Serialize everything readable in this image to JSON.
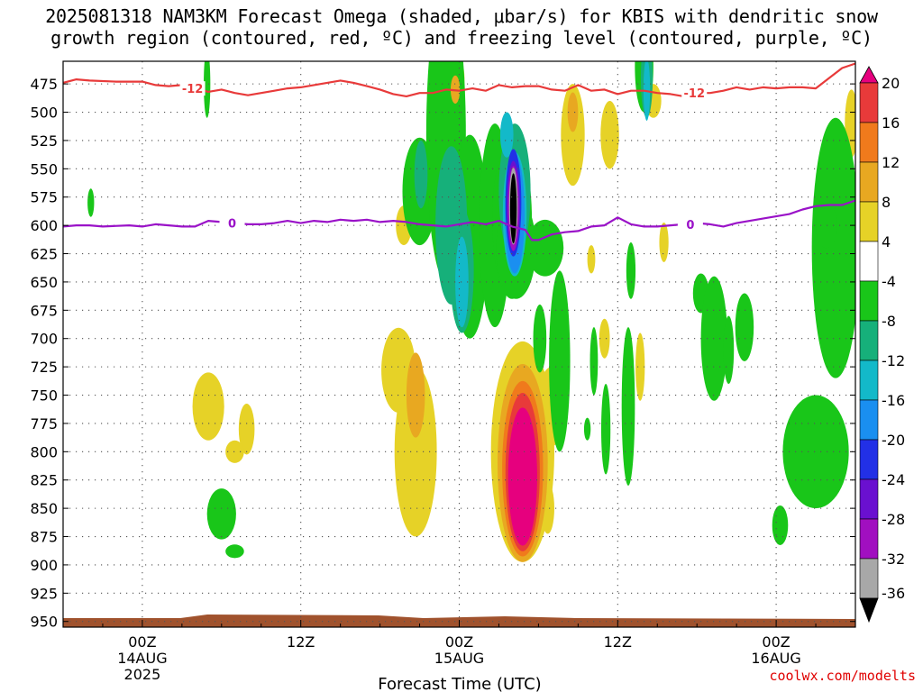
{
  "title": {
    "line1": "2025081318 NAM3KM Forecast Omega (shaded, μbar/s) for KBIS with dendritic snow",
    "line2": "growth region (contoured, red, ºC) and freezing level (contoured, purple, ºC)"
  },
  "footer": {
    "credit": "coolwx.com/modelts"
  },
  "colors": {
    "dgz_line": "#e83a3a",
    "freezing_line": "#9a12c8",
    "ground": "#a0522d",
    "grid": "#888888"
  },
  "chart_data": {
    "type": "heatmap",
    "xlabel": "Forecast Time (UTC)",
    "ylabel": "",
    "x_ticks": [
      {
        "label": "00Z",
        "sub": [
          "14AUG",
          "2025"
        ],
        "hour": 6
      },
      {
        "label": "12Z",
        "sub": [],
        "hour": 18
      },
      {
        "label": "00Z",
        "sub": [
          "15AUG"
        ],
        "hour": 30
      },
      {
        "label": "12Z",
        "sub": [],
        "hour": 42
      },
      {
        "label": "00Z",
        "sub": [
          "16AUG"
        ],
        "hour": 54
      }
    ],
    "xlim_hours": [
      0,
      60
    ],
    "y_ticks_mb": [
      475,
      500,
      525,
      550,
      575,
      600,
      625,
      650,
      675,
      700,
      725,
      750,
      775,
      800,
      825,
      850,
      875,
      900,
      925,
      950
    ],
    "ylim_mb": [
      455,
      955
    ],
    "colorbar": {
      "labels": [
        "20",
        "16",
        "12",
        "8",
        "4",
        "-4",
        "-8",
        "-12",
        "-16",
        "-20",
        "-24",
        "-28",
        "-32",
        "-36"
      ],
      "bins": [
        {
          "lo": 20,
          "color": "#e6007e"
        },
        {
          "lo": 16,
          "color": "#e83a3a"
        },
        {
          "lo": 12,
          "color": "#f07a1c"
        },
        {
          "lo": 8,
          "color": "#e8a821"
        },
        {
          "lo": 4,
          "color": "#e6d227"
        },
        {
          "lo": -4,
          "color": "#ffffff"
        },
        {
          "lo": -8,
          "color": "#19c619"
        },
        {
          "lo": -12,
          "color": "#16b07a"
        },
        {
          "lo": -16,
          "color": "#13b9c9"
        },
        {
          "lo": -20,
          "color": "#1a8ff0"
        },
        {
          "lo": -24,
          "color": "#2230e6"
        },
        {
          "lo": -28,
          "color": "#6a10d0"
        },
        {
          "lo": -32,
          "color": "#a10fc0"
        },
        {
          "lo": -36,
          "color": "#a8a8a8"
        },
        {
          "lo": -99,
          "color": "#000000"
        }
      ]
    },
    "contours": [
      {
        "name": "-12",
        "label": "-12",
        "points": [
          [
            0,
            474
          ],
          [
            1,
            471
          ],
          [
            2,
            472
          ],
          [
            4,
            473
          ],
          [
            6,
            473
          ],
          [
            7,
            476
          ],
          [
            8,
            477
          ],
          [
            9,
            476
          ],
          [
            10,
            479
          ],
          [
            11,
            482
          ],
          [
            12,
            480
          ],
          [
            13,
            483
          ],
          [
            14,
            485
          ],
          [
            15,
            483
          ],
          [
            16,
            481
          ],
          [
            17,
            479
          ],
          [
            18,
            478
          ],
          [
            19,
            476
          ],
          [
            20,
            474
          ],
          [
            21,
            472
          ],
          [
            22,
            474
          ],
          [
            23,
            477
          ],
          [
            24,
            480
          ],
          [
            25,
            484
          ],
          [
            26,
            486
          ],
          [
            27,
            483
          ],
          [
            28,
            483
          ],
          [
            29,
            480
          ],
          [
            30,
            481
          ],
          [
            31,
            479
          ],
          [
            32,
            481
          ],
          [
            33,
            476
          ],
          [
            34,
            478
          ],
          [
            35,
            477
          ],
          [
            36,
            477
          ],
          [
            37,
            480
          ],
          [
            38,
            481
          ],
          [
            39,
            476
          ],
          [
            40,
            481
          ],
          [
            41,
            480
          ],
          [
            42,
            484
          ],
          [
            43,
            481
          ],
          [
            44,
            481
          ],
          [
            45,
            483
          ],
          [
            46,
            484
          ],
          [
            47,
            486
          ],
          [
            48,
            483
          ],
          [
            49,
            483
          ],
          [
            50,
            481
          ],
          [
            51,
            478
          ],
          [
            52,
            480
          ],
          [
            53,
            478
          ],
          [
            54,
            479
          ],
          [
            55,
            478
          ],
          [
            56,
            478
          ],
          [
            57,
            479
          ],
          [
            58,
            470
          ],
          [
            59,
            461
          ],
          [
            60,
            457
          ]
        ]
      },
      {
        "name": "0",
        "label": "0",
        "points": [
          [
            0,
            601
          ],
          [
            1,
            600
          ],
          [
            2,
            600
          ],
          [
            3,
            601
          ],
          [
            5,
            600
          ],
          [
            6,
            601
          ],
          [
            7,
            599
          ],
          [
            8,
            600
          ],
          [
            9,
            601
          ],
          [
            10,
            601
          ],
          [
            11,
            596
          ],
          [
            12,
            597
          ],
          [
            13,
            598
          ],
          [
            14,
            599
          ],
          [
            15,
            599
          ],
          [
            16,
            598
          ],
          [
            17,
            596
          ],
          [
            18,
            598
          ],
          [
            19,
            596
          ],
          [
            20,
            597
          ],
          [
            21,
            595
          ],
          [
            22,
            596
          ],
          [
            23,
            595
          ],
          [
            24,
            597
          ],
          [
            25,
            596
          ],
          [
            26,
            597
          ],
          [
            27,
            599
          ],
          [
            28,
            600
          ],
          [
            29,
            601
          ],
          [
            30,
            599
          ],
          [
            31,
            597
          ],
          [
            32,
            599
          ],
          [
            33,
            596
          ],
          [
            34,
            601
          ],
          [
            35,
            604
          ],
          [
            35.5,
            613
          ],
          [
            36,
            613
          ],
          [
            37,
            608
          ],
          [
            38,
            606
          ],
          [
            39,
            605
          ],
          [
            40,
            601
          ],
          [
            41,
            600
          ],
          [
            42,
            593
          ],
          [
            43,
            599
          ],
          [
            44,
            601
          ],
          [
            45,
            601
          ],
          [
            46,
            600
          ],
          [
            47,
            599
          ],
          [
            48,
            598
          ],
          [
            49,
            599
          ],
          [
            50,
            601
          ],
          [
            51,
            598
          ],
          [
            52,
            596
          ],
          [
            53,
            594
          ],
          [
            54,
            592
          ],
          [
            55,
            590
          ],
          [
            56,
            586
          ],
          [
            57,
            583
          ],
          [
            58,
            582
          ],
          [
            59,
            582
          ],
          [
            60,
            578
          ]
        ]
      }
    ],
    "omega_regions": [
      {
        "x": 25.4,
        "p": 728,
        "rx": 1.3,
        "ry": 75,
        "value": 5
      },
      {
        "x": 25.8,
        "p": 600,
        "rx": 0.6,
        "ry": 35,
        "value": 5
      },
      {
        "x": 26.7,
        "p": 800,
        "rx": 1.6,
        "ry": 150,
        "value": 5
      },
      {
        "x": 26.7,
        "p": 750,
        "rx": 0.7,
        "ry": 75,
        "value": 9
      },
      {
        "x": 27.7,
        "p": 540,
        "rx": 0.5,
        "ry": 20,
        "value": 5
      },
      {
        "x": 29.7,
        "p": 470,
        "rx": 0.7,
        "ry": 40,
        "value": 5
      },
      {
        "x": 29.7,
        "p": 480,
        "rx": 0.35,
        "ry": 25,
        "value": 9
      },
      {
        "x": 34.8,
        "p": 800,
        "rx": 2.4,
        "ry": 195,
        "value": 5
      },
      {
        "x": 34.8,
        "p": 810,
        "rx": 1.9,
        "ry": 175,
        "value": 9
      },
      {
        "x": 34.8,
        "p": 815,
        "rx": 1.55,
        "ry": 155,
        "value": 13
      },
      {
        "x": 34.8,
        "p": 818,
        "rx": 1.3,
        "ry": 140,
        "value": 17
      },
      {
        "x": 34.8,
        "p": 822,
        "rx": 1.1,
        "ry": 122,
        "value": 21
      },
      {
        "x": 37.0,
        "p": 760,
        "rx": 1.1,
        "ry": 70,
        "value": 5
      },
      {
        "x": 36.7,
        "p": 850,
        "rx": 0.5,
        "ry": 45,
        "value": 5
      },
      {
        "x": 38.6,
        "p": 520,
        "rx": 0.9,
        "ry": 90,
        "value": 5
      },
      {
        "x": 38.6,
        "p": 500,
        "rx": 0.4,
        "ry": 35,
        "value": 9
      },
      {
        "x": 40.0,
        "p": 630,
        "rx": 0.3,
        "ry": 25,
        "value": 5
      },
      {
        "x": 41.0,
        "p": 700,
        "rx": 0.4,
        "ry": 35,
        "value": 5
      },
      {
        "x": 41.4,
        "p": 520,
        "rx": 0.7,
        "ry": 60,
        "value": 5
      },
      {
        "x": 43.7,
        "p": 725,
        "rx": 0.35,
        "ry": 60,
        "value": 5
      },
      {
        "x": 44.7,
        "p": 490,
        "rx": 0.6,
        "ry": 30,
        "value": 5
      },
      {
        "x": 45.5,
        "p": 615,
        "rx": 0.35,
        "ry": 35,
        "value": 5
      },
      {
        "x": 59.7,
        "p": 510,
        "rx": 0.5,
        "ry": 60,
        "value": 5
      },
      {
        "x": 11.0,
        "p": 760,
        "rx": 1.2,
        "ry": 60,
        "value": 5
      },
      {
        "x": 13.9,
        "p": 780,
        "rx": 0.6,
        "ry": 45,
        "value": 5
      },
      {
        "x": 13.0,
        "p": 800,
        "rx": 0.7,
        "ry": 20,
        "value": 5
      },
      {
        "x": 2.1,
        "p": 580,
        "rx": 0.25,
        "ry": 25,
        "value": -6
      },
      {
        "x": 10.9,
        "p": 475,
        "rx": 0.25,
        "ry": 60,
        "value": -6
      },
      {
        "x": 12.0,
        "p": 855,
        "rx": 1.1,
        "ry": 45,
        "value": -6
      },
      {
        "x": 13.0,
        "p": 888,
        "rx": 0.7,
        "ry": 12,
        "value": -6
      },
      {
        "x": 27.0,
        "p": 570,
        "rx": 1.3,
        "ry": 95,
        "value": -6
      },
      {
        "x": 29.0,
        "p": 520,
        "rx": 1.5,
        "ry": 260,
        "value": -6
      },
      {
        "x": 29.4,
        "p": 600,
        "rx": 1.2,
        "ry": 140,
        "value": -10
      },
      {
        "x": 30.8,
        "p": 610,
        "rx": 1.4,
        "ry": 180,
        "value": -6
      },
      {
        "x": 32.7,
        "p": 600,
        "rx": 1.2,
        "ry": 180,
        "value": -6
      },
      {
        "x": 30.2,
        "p": 640,
        "rx": 0.9,
        "ry": 110,
        "value": -10
      },
      {
        "x": 30.2,
        "p": 650,
        "rx": 0.5,
        "ry": 80,
        "value": -14
      },
      {
        "x": 27.1,
        "p": 555,
        "rx": 0.5,
        "ry": 60,
        "value": -10
      },
      {
        "x": 34.0,
        "p": 595,
        "rx": 1.5,
        "ry": 140,
        "value": -6
      },
      {
        "x": 34.3,
        "p": 620,
        "rx": 1.5,
        "ry": 90,
        "value": -6
      },
      {
        "x": 34.2,
        "p": 570,
        "rx": 1.2,
        "ry": 120,
        "value": -10
      },
      {
        "x": 33.6,
        "p": 520,
        "rx": 0.5,
        "ry": 40,
        "value": -14
      },
      {
        "x": 34.2,
        "p": 590,
        "rx": 0.9,
        "ry": 110,
        "value": -14
      },
      {
        "x": 34.2,
        "p": 590,
        "rx": 0.75,
        "ry": 105,
        "value": -18
      },
      {
        "x": 34.1,
        "p": 580,
        "rx": 0.6,
        "ry": 95,
        "value": -22
      },
      {
        "x": 34.1,
        "p": 583,
        "rx": 0.5,
        "ry": 80,
        "value": -26
      },
      {
        "x": 34.1,
        "p": 585,
        "rx": 0.42,
        "ry": 75,
        "value": -30
      },
      {
        "x": 34.1,
        "p": 583,
        "rx": 0.33,
        "ry": 68,
        "value": -34
      },
      {
        "x": 34.1,
        "p": 585,
        "rx": 0.25,
        "ry": 62,
        "value": -40
      },
      {
        "x": 36.5,
        "p": 620,
        "rx": 1.4,
        "ry": 50,
        "value": -6
      },
      {
        "x": 37.6,
        "p": 720,
        "rx": 0.8,
        "ry": 160,
        "value": -6
      },
      {
        "x": 36.1,
        "p": 700,
        "rx": 0.5,
        "ry": 60,
        "value": -6
      },
      {
        "x": 39.7,
        "p": 780,
        "rx": 0.25,
        "ry": 20,
        "value": -6
      },
      {
        "x": 40.2,
        "p": 720,
        "rx": 0.3,
        "ry": 60,
        "value": -6
      },
      {
        "x": 41.1,
        "p": 780,
        "rx": 0.35,
        "ry": 80,
        "value": -6
      },
      {
        "x": 42.8,
        "p": 760,
        "rx": 0.5,
        "ry": 140,
        "value": -6
      },
      {
        "x": 43.0,
        "p": 640,
        "rx": 0.35,
        "ry": 50,
        "value": -6
      },
      {
        "x": 44.0,
        "p": 460,
        "rx": 0.7,
        "ry": 80,
        "value": -6
      },
      {
        "x": 44.2,
        "p": 470,
        "rx": 0.45,
        "ry": 70,
        "value": -10
      },
      {
        "x": 44.2,
        "p": 480,
        "rx": 0.25,
        "ry": 55,
        "value": -14
      },
      {
        "x": 48.3,
        "p": 660,
        "rx": 0.6,
        "ry": 35,
        "value": -6
      },
      {
        "x": 49.3,
        "p": 700,
        "rx": 1.0,
        "ry": 110,
        "value": -6
      },
      {
        "x": 50.4,
        "p": 710,
        "rx": 0.4,
        "ry": 60,
        "value": -6
      },
      {
        "x": 51.6,
        "p": 690,
        "rx": 0.7,
        "ry": 60,
        "value": -6
      },
      {
        "x": 54.3,
        "p": 865,
        "rx": 0.6,
        "ry": 35,
        "value": -6
      },
      {
        "x": 57.0,
        "p": 800,
        "rx": 2.5,
        "ry": 100,
        "value": -6
      },
      {
        "x": 58.5,
        "p": 620,
        "rx": 1.8,
        "ry": 230,
        "value": -6
      },
      {
        "x": 57.8,
        "p": 600,
        "rx": 0.8,
        "ry": 40,
        "value": -6
      }
    ]
  }
}
